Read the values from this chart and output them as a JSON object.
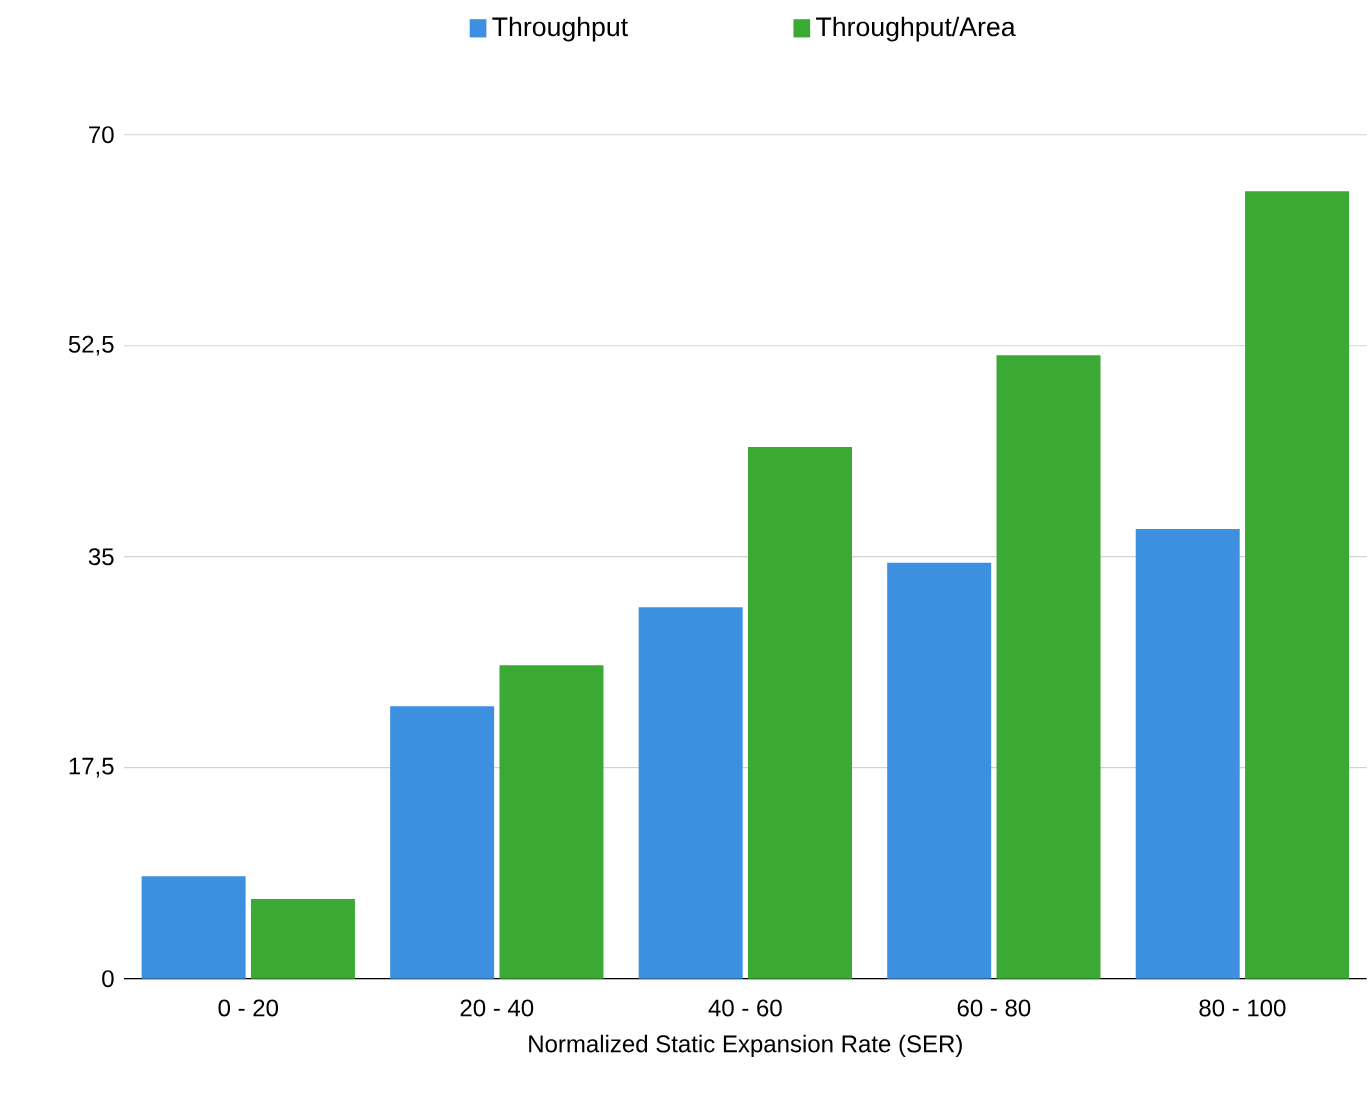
{
  "chart_data": {
    "type": "bar",
    "xlabel": "Normalized Static Expansion Rate (SER)",
    "categories": [
      "0 - 20",
      "20 - 40",
      "40 - 60",
      "60 - 80",
      "80 - 100"
    ],
    "series": [
      {
        "name": "Throughput",
        "color": "#3d8fe0",
        "values": [
          8.5,
          22.6,
          30.8,
          34.5,
          37.3
        ]
      },
      {
        "name": "Throughput/Area",
        "color": "#3aaa35",
        "values": [
          6.6,
          26.0,
          44.1,
          51.7,
          65.3
        ]
      }
    ],
    "ylim": [
      0,
      70
    ],
    "yticks": [
      0,
      {
        "value": 17.5,
        "label": "17,5"
      },
      35,
      {
        "value": 52.5,
        "label": "52,5"
      },
      70
    ],
    "grid": "y",
    "legend": "top"
  }
}
